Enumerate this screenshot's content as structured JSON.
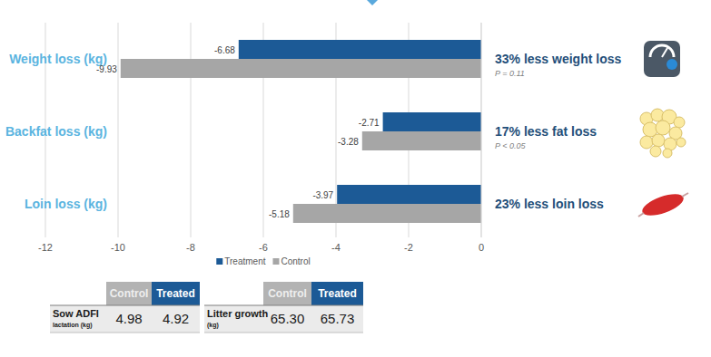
{
  "chart_data": {
    "type": "bar",
    "orientation": "horizontal",
    "categories": [
      "Weight loss (kg)",
      "Backfat loss (kg)",
      "Loin loss (kg)"
    ],
    "series": [
      {
        "name": "Treatment",
        "color": "#1c5a96",
        "values": [
          -6.68,
          -2.71,
          -3.97
        ]
      },
      {
        "name": "Control",
        "color": "#a6a6a6",
        "values": [
          -9.93,
          -3.28,
          -5.18
        ]
      }
    ],
    "xlim": [
      -12,
      0
    ],
    "xticks": [
      -12,
      -10,
      -8,
      -6,
      -4,
      -2,
      0
    ],
    "grid": true,
    "legend": "bottom",
    "data_labels": true,
    "annotations": [
      {
        "text": "33% less weight loss",
        "note": "P = 0.11"
      },
      {
        "text": "17% less fat loss",
        "note": "P < 0.05"
      },
      {
        "text": "23% less loin loss"
      }
    ]
  },
  "tables": [
    {
      "header": [
        "Control",
        "Treated"
      ],
      "rows": [
        {
          "label": "Sow ADFI",
          "unit": "lactation (kg)",
          "values": [
            "4.98",
            "4.92"
          ]
        }
      ]
    },
    {
      "header": [
        "Control",
        "Treated"
      ],
      "rows": [
        {
          "label": "Litter growth",
          "unit": "(kg)",
          "values": [
            "65.30",
            "65.73"
          ]
        }
      ]
    }
  ]
}
